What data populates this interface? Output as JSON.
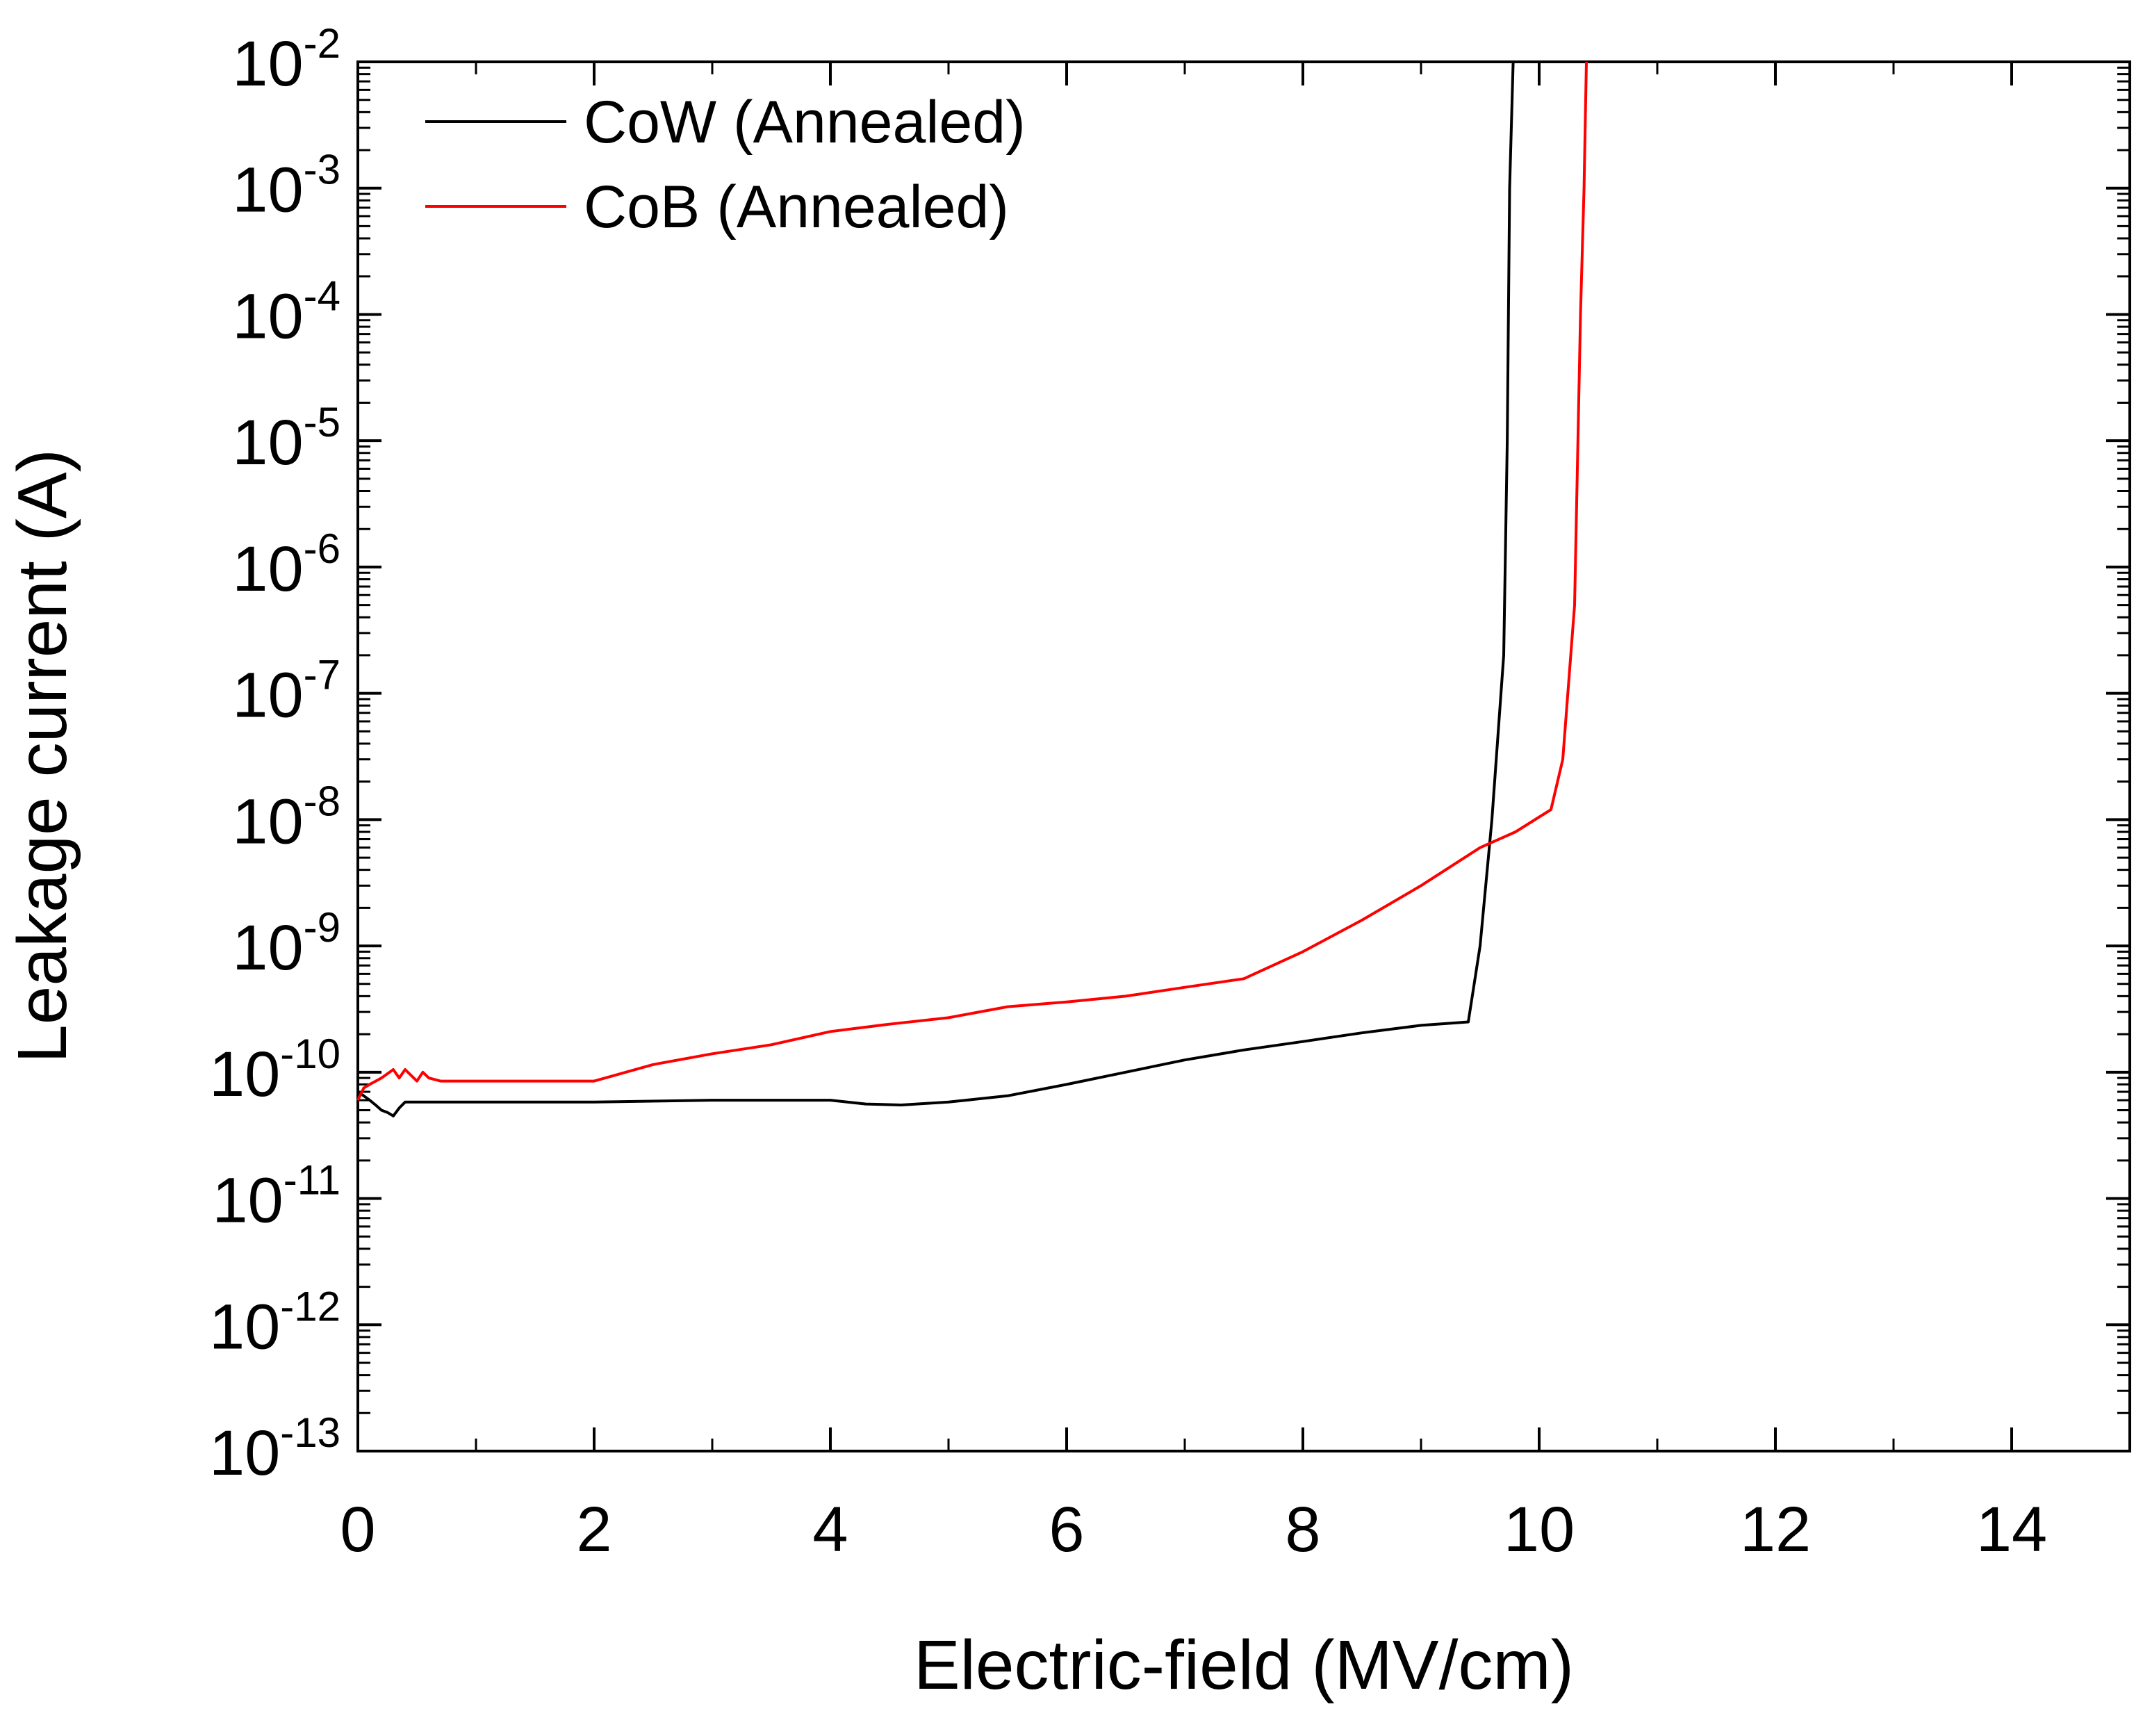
{
  "chart_data": {
    "type": "line",
    "title": "",
    "xlabel": "Electric-field (MV/cm)",
    "ylabel": "Leakage current (A)",
    "xlim": [
      0,
      15
    ],
    "ylim": [
      1e-13,
      0.01
    ],
    "yscale": "log",
    "x_ticks": [
      0,
      2,
      4,
      6,
      8,
      10,
      12,
      14
    ],
    "y_ticks": [
      {
        "base": "10",
        "exp": "-13",
        "value": 1e-13
      },
      {
        "base": "10",
        "exp": "-12",
        "value": 1e-12
      },
      {
        "base": "10",
        "exp": "-11",
        "value": 1e-11
      },
      {
        "base": "10",
        "exp": "-10",
        "value": 1e-10
      },
      {
        "base": "10",
        "exp": "-9",
        "value": 1e-09
      },
      {
        "base": "10",
        "exp": "-8",
        "value": 1e-08
      },
      {
        "base": "10",
        "exp": "-7",
        "value": 1e-07
      },
      {
        "base": "10",
        "exp": "-6",
        "value": 1e-06
      },
      {
        "base": "10",
        "exp": "-5",
        "value": 1e-05
      },
      {
        "base": "10",
        "exp": "-4",
        "value": 0.0001
      },
      {
        "base": "10",
        "exp": "-3",
        "value": 0.001
      },
      {
        "base": "10",
        "exp": "-2",
        "value": 0.01
      }
    ],
    "grid": false,
    "legend_position": "top-left",
    "series": [
      {
        "name": "CoW (Annealed)",
        "color": "#000000",
        "x": [
          0.0,
          0.05,
          0.1,
          0.15,
          0.2,
          0.25,
          0.3,
          0.35,
          0.4,
          0.5,
          1.0,
          2.0,
          3.0,
          4.0,
          4.3,
          4.6,
          5.0,
          5.5,
          6.0,
          6.5,
          7.0,
          7.5,
          8.0,
          8.5,
          9.0,
          9.4,
          9.5,
          9.6,
          9.7,
          9.73,
          9.75,
          9.78
        ],
        "y": [
          7e-11,
          6.5e-11,
          6e-11,
          5.5e-11,
          5e-11,
          4.8e-11,
          4.5e-11,
          5.2e-11,
          5.8e-11,
          5.8e-11,
          5.8e-11,
          5.8e-11,
          6e-11,
          6e-11,
          5.6e-11,
          5.5e-11,
          5.8e-11,
          6.5e-11,
          8e-11,
          1e-10,
          1.25e-10,
          1.5e-10,
          1.75e-10,
          2.05e-10,
          2.35e-10,
          2.5e-10,
          1e-09,
          1e-08,
          2e-07,
          1e-05,
          0.001,
          0.01
        ]
      },
      {
        "name": "CoB (Annealed)",
        "color": "#ff0000",
        "x": [
          0.0,
          0.05,
          0.1,
          0.2,
          0.3,
          0.35,
          0.4,
          0.5,
          0.55,
          0.6,
          0.7,
          1.0,
          2.0,
          2.5,
          3.0,
          3.5,
          4.0,
          4.5,
          5.0,
          5.5,
          6.0,
          6.5,
          7.0,
          7.5,
          8.0,
          8.5,
          9.0,
          9.5,
          9.8,
          10.1,
          10.2,
          10.3,
          10.35,
          10.38,
          10.4
        ],
        "y": [
          6e-11,
          7.5e-11,
          8e-11,
          9e-11,
          1.05e-10,
          9e-11,
          1.05e-10,
          8.5e-11,
          1e-10,
          9e-11,
          8.5e-11,
          8.5e-11,
          8.5e-11,
          1.15e-10,
          1.4e-10,
          1.65e-10,
          2.1e-10,
          2.4e-10,
          2.7e-10,
          3.3e-10,
          3.6e-10,
          4e-10,
          4.7e-10,
          5.5e-10,
          9e-10,
          1.6e-09,
          3e-09,
          6e-09,
          8e-09,
          1.2e-08,
          3e-08,
          5e-07,
          0.0001,
          0.001,
          0.01
        ]
      }
    ]
  }
}
